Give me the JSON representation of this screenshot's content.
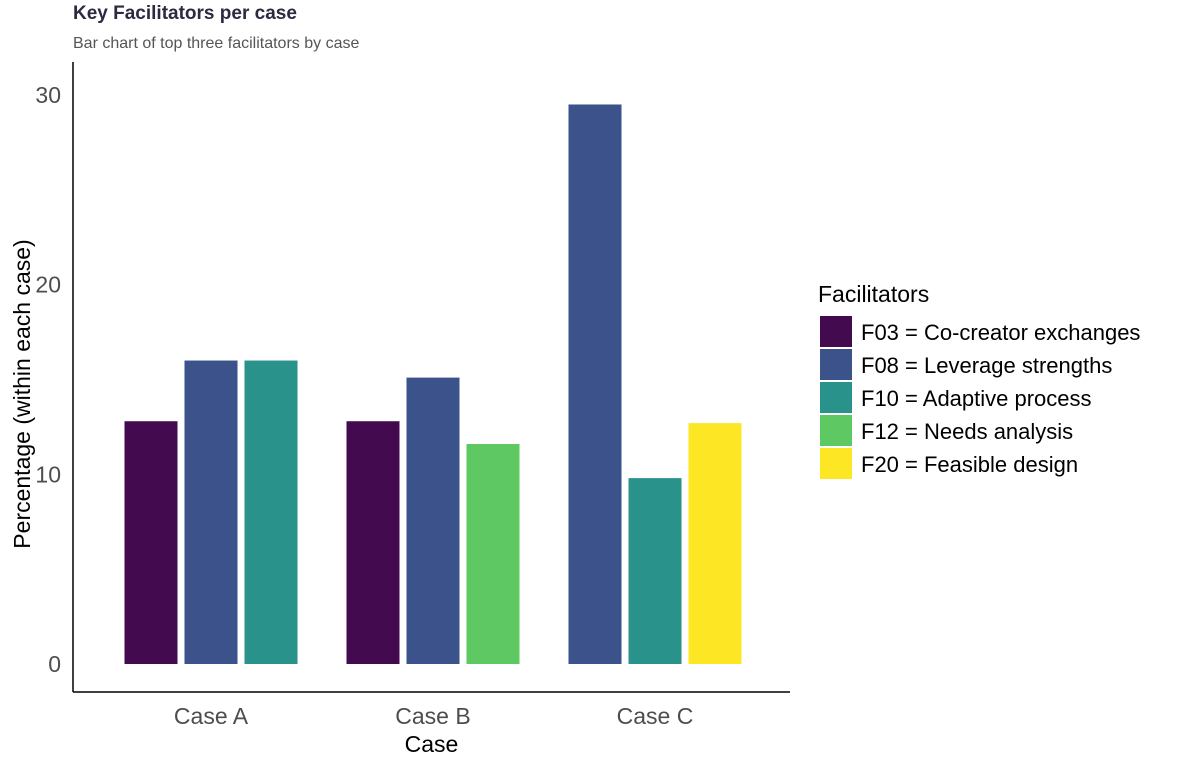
{
  "chart_data": {
    "type": "bar",
    "title": "Key Facilitators per case",
    "subtitle": "Bar chart of top three facilitators by case",
    "xlabel": "Case",
    "ylabel": "Percentage (within each case)",
    "ylim": [
      0,
      31
    ],
    "yticks": [
      "0",
      "10",
      "20",
      "30"
    ],
    "grid": false,
    "legend_position": "right",
    "legend_title": "Facilitators",
    "categories": [
      "Case A",
      "Case B",
      "Case C"
    ],
    "legend": [
      {
        "code": "F03",
        "label": "F03 = Co-creator exchanges",
        "color": "#440a4f"
      },
      {
        "code": "F08",
        "label": "F08 = Leverage strengths",
        "color": "#3b528b"
      },
      {
        "code": "F10",
        "label": "F10 = Adaptive process",
        "color": "#29928a"
      },
      {
        "code": "F12",
        "label": "F12 = Needs analysis",
        "color": "#5ec962"
      },
      {
        "code": "F20",
        "label": "F20 = Feasible design",
        "color": "#fde725"
      }
    ],
    "bars": [
      {
        "category": "Case A",
        "items": [
          {
            "code": "F03",
            "value": 12.8
          },
          {
            "code": "F08",
            "value": 16.0
          },
          {
            "code": "F10",
            "value": 16.0
          }
        ]
      },
      {
        "category": "Case B",
        "items": [
          {
            "code": "F03",
            "value": 12.8
          },
          {
            "code": "F08",
            "value": 15.1
          },
          {
            "code": "F12",
            "value": 11.6
          }
        ]
      },
      {
        "category": "Case C",
        "items": [
          {
            "code": "F08",
            "value": 29.5
          },
          {
            "code": "F10",
            "value": 9.8
          },
          {
            "code": "F20",
            "value": 12.7
          }
        ]
      }
    ]
  }
}
